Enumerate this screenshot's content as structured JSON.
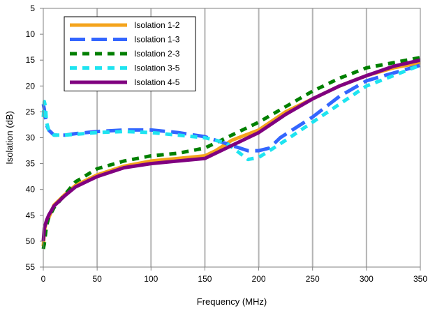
{
  "chart_data": {
    "type": "line",
    "title": "",
    "xlabel": "Frequency (MHz)",
    "ylabel": "Isolation (dB)",
    "xlim": [
      0,
      350
    ],
    "ylim": [
      5,
      55
    ],
    "y_inverted": true,
    "x_ticks": [
      0,
      50,
      100,
      150,
      200,
      250,
      300,
      350
    ],
    "y_ticks": [
      5,
      10,
      15,
      20,
      25,
      30,
      35,
      40,
      45,
      50,
      55
    ],
    "grid": "vertical",
    "legend_position": "top-left",
    "series": [
      {
        "name": "Isolation 1-2",
        "color": "#f4a41d",
        "dash": "solid",
        "x": [
          0,
          1,
          3,
          5,
          10,
          20,
          30,
          50,
          75,
          100,
          125,
          150,
          160,
          175,
          200,
          225,
          250,
          275,
          300,
          325,
          350
        ],
        "y": [
          51,
          48,
          46,
          45.5,
          43,
          41,
          39.2,
          37.2,
          35.5,
          34.5,
          34,
          33.5,
          32.5,
          30.5,
          28.5,
          25,
          22.5,
          20,
          18,
          16.5,
          15.5
        ]
      },
      {
        "name": "Isolation 1-3",
        "color": "#3366ff",
        "dash": "long-dash",
        "x": [
          0,
          1,
          3,
          5,
          10,
          20,
          30,
          50,
          75,
          100,
          125,
          150,
          175,
          190,
          200,
          210,
          220,
          250,
          275,
          300,
          325,
          350
        ],
        "y": [
          23.5,
          24.5,
          27.5,
          28.5,
          29.5,
          29.5,
          29.2,
          28.8,
          28.5,
          28.5,
          29,
          29.8,
          31.5,
          32.5,
          32.5,
          32,
          30,
          26,
          22,
          19,
          17.5,
          16
        ]
      },
      {
        "name": "Isolation 2-3",
        "color": "#008000",
        "dash": "dash",
        "x": [
          0,
          1,
          3,
          5,
          10,
          20,
          30,
          50,
          75,
          100,
          125,
          150,
          160,
          175,
          200,
          225,
          250,
          275,
          300,
          325,
          350
        ],
        "y": [
          51.5,
          50.5,
          47,
          45.5,
          43.5,
          41,
          38.5,
          36,
          34.5,
          33.5,
          33,
          32,
          31,
          29.5,
          27,
          24,
          21,
          18.5,
          16.5,
          15.5,
          14.5
        ]
      },
      {
        "name": "Isolation 3-5",
        "color": "#1ee4f0",
        "dash": "dash",
        "x": [
          0,
          1,
          2,
          3,
          5,
          10,
          20,
          50,
          75,
          100,
          125,
          150,
          170,
          190,
          200,
          210,
          225,
          250,
          275,
          300,
          325,
          350
        ],
        "y": [
          26,
          23,
          24,
          27,
          28.5,
          29.5,
          29.5,
          29,
          28.8,
          29,
          29.5,
          30,
          31,
          34.2,
          33.8,
          32.5,
          30.5,
          27,
          23.5,
          20,
          18,
          16
        ]
      },
      {
        "name": "Isolation 4-5",
        "color": "#800080",
        "dash": "solid",
        "x": [
          0,
          1,
          3,
          5,
          10,
          20,
          30,
          50,
          75,
          100,
          125,
          150,
          160,
          175,
          200,
          225,
          250,
          275,
          300,
          325,
          350
        ],
        "y": [
          50,
          47.5,
          46,
          45,
          43.2,
          41.2,
          39.5,
          37.5,
          35.8,
          35,
          34.5,
          34,
          33,
          31.5,
          29,
          25.5,
          22.5,
          20,
          18,
          16.2,
          15
        ]
      }
    ]
  }
}
